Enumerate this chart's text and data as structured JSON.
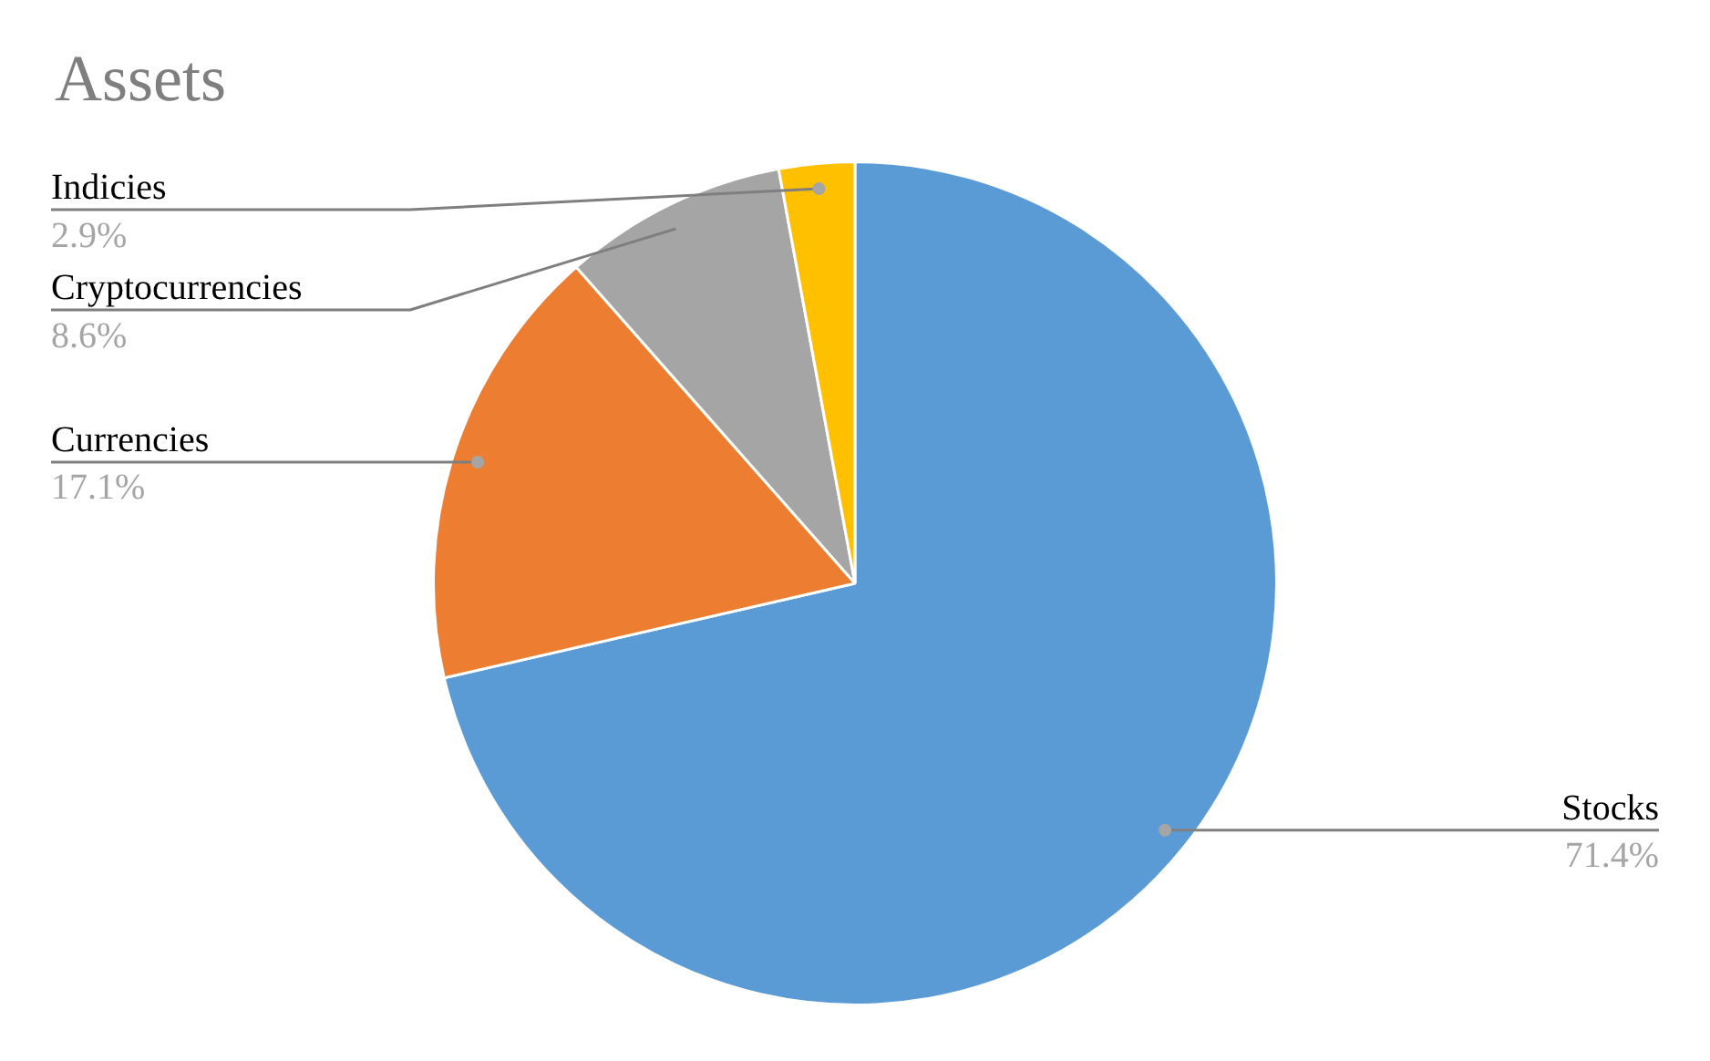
{
  "chart_data": {
    "type": "pie",
    "title": "Assets",
    "categories": [
      "Stocks",
      "Currencies",
      "Cryptocurrencies",
      "Indicies"
    ],
    "values": [
      71.4,
      17.1,
      8.6,
      2.9
    ],
    "value_labels": [
      "71.4%",
      "17.1%",
      "8.6%",
      "2.9%"
    ],
    "colors": [
      "#5b9bd5",
      "#ed7d31",
      "#a5a5a5",
      "#ffc000"
    ],
    "legend": false
  }
}
